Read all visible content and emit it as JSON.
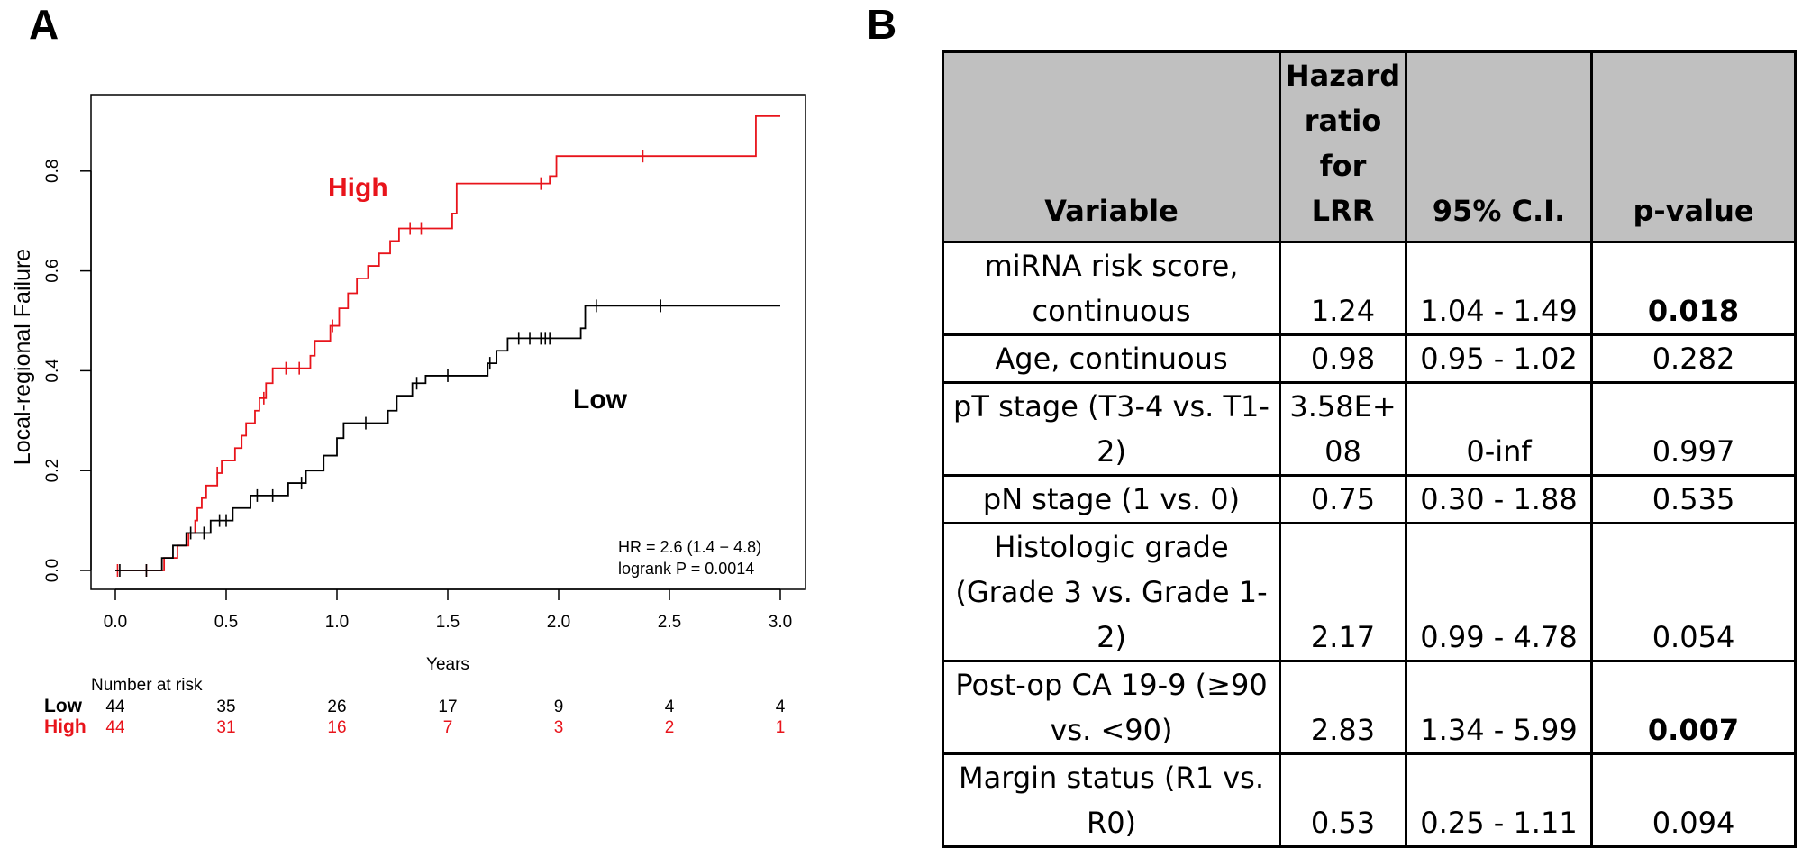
{
  "panels": {
    "a": "A",
    "b": "B"
  },
  "chart_data": {
    "type": "line",
    "title": "",
    "xlabel": "Years",
    "ylabel": "Local-regional Failure",
    "xlim": [
      0,
      3
    ],
    "ylim": [
      0,
      0.9
    ],
    "x_ticks": [
      "0.0",
      "0.5",
      "1.0",
      "1.5",
      "2.0",
      "2.5",
      "3.0"
    ],
    "y_ticks": [
      "0.0",
      "0.2",
      "0.4",
      "0.6",
      "0.8"
    ],
    "x_tick_values": [
      0,
      0.5,
      1.0,
      1.5,
      2.0,
      2.5,
      3.0
    ],
    "y_tick_values": [
      0,
      0.2,
      0.4,
      0.6,
      0.8
    ],
    "series": [
      {
        "name": "High",
        "color": "#e8141b",
        "steps": [
          [
            0,
            0
          ],
          [
            0.2,
            0
          ],
          [
            0.22,
            0.025
          ],
          [
            0.28,
            0.05
          ],
          [
            0.33,
            0.075
          ],
          [
            0.36,
            0.1
          ],
          [
            0.37,
            0.125
          ],
          [
            0.39,
            0.145
          ],
          [
            0.41,
            0.17
          ],
          [
            0.46,
            0.195
          ],
          [
            0.48,
            0.22
          ],
          [
            0.54,
            0.245
          ],
          [
            0.57,
            0.27
          ],
          [
            0.59,
            0.295
          ],
          [
            0.63,
            0.32
          ],
          [
            0.65,
            0.345
          ],
          [
            0.68,
            0.375
          ],
          [
            0.71,
            0.405
          ],
          [
            0.88,
            0.43
          ],
          [
            0.9,
            0.46
          ],
          [
            0.97,
            0.49
          ],
          [
            1.01,
            0.525
          ],
          [
            1.05,
            0.555
          ],
          [
            1.09,
            0.585
          ],
          [
            1.14,
            0.61
          ],
          [
            1.19,
            0.635
          ],
          [
            1.24,
            0.66
          ],
          [
            1.28,
            0.685
          ],
          [
            1.52,
            0.715
          ],
          [
            1.54,
            0.775
          ],
          [
            1.96,
            0.79
          ],
          [
            1.99,
            0.83
          ],
          [
            2.88,
            0.83
          ],
          [
            2.89,
            0.91
          ],
          [
            3.0,
            0.91
          ]
        ],
        "censor": [
          0.01,
          0.14,
          0.46,
          0.67,
          0.77,
          0.83,
          0.98,
          1.33,
          1.38,
          1.92,
          2.38
        ]
      },
      {
        "name": "Low",
        "color": "#000000",
        "steps": [
          [
            0,
            0
          ],
          [
            0.2,
            0
          ],
          [
            0.21,
            0.025
          ],
          [
            0.26,
            0.05
          ],
          [
            0.32,
            0.075
          ],
          [
            0.43,
            0.1
          ],
          [
            0.53,
            0.125
          ],
          [
            0.61,
            0.15
          ],
          [
            0.71,
            0.15
          ],
          [
            0.78,
            0.175
          ],
          [
            0.86,
            0.2
          ],
          [
            0.94,
            0.23
          ],
          [
            1.0,
            0.265
          ],
          [
            1.03,
            0.295
          ],
          [
            1.23,
            0.32
          ],
          [
            1.27,
            0.35
          ],
          [
            1.34,
            0.375
          ],
          [
            1.4,
            0.39
          ],
          [
            1.68,
            0.415
          ],
          [
            1.72,
            0.44
          ],
          [
            1.77,
            0.465
          ],
          [
            2.1,
            0.485
          ],
          [
            2.12,
            0.53
          ],
          [
            3.0,
            0.53
          ]
        ],
        "censor": [
          0.02,
          0.14,
          0.34,
          0.4,
          0.47,
          0.5,
          0.64,
          0.71,
          0.84,
          1.13,
          1.36,
          1.5,
          1.69,
          1.82,
          1.87,
          1.92,
          1.94,
          1.96,
          2.17,
          2.46
        ]
      }
    ],
    "annotations": {
      "high_label": "High",
      "low_label": "Low",
      "hr": "HR = 2.6 (1.4 − 4.8)",
      "logrank": "logrank P = 0.0014"
    },
    "risk_table": {
      "title": "Number at risk",
      "rows": [
        {
          "label": "Low",
          "color": "#000000",
          "values": [
            "44",
            "35",
            "26",
            "17",
            "9",
            "4",
            "4"
          ]
        },
        {
          "label": "High",
          "color": "#e8141b",
          "values": [
            "44",
            "31",
            "16",
            "7",
            "3",
            "2",
            "1"
          ]
        }
      ]
    }
  },
  "table": {
    "headers": {
      "variable": "Variable",
      "hr_line1": "Hazard",
      "hr_line2": "ratio for",
      "hr_line3": "LRR",
      "ci": "95% C.I.",
      "p": "p-value"
    },
    "rows": [
      {
        "variable": "miRNA risk score, continuous",
        "hr": "1.24",
        "ci": "1.04 - 1.49",
        "p": "0.018"
      },
      {
        "variable": "Age, continuous",
        "hr": "0.98",
        "ci": "0.95 - 1.02",
        "p": "0.282"
      },
      {
        "variable": "pT stage (T3-4 vs. T1-2)",
        "hr": "3.58E+08",
        "ci": "0-inf",
        "p": "0.997"
      },
      {
        "variable": "pN stage (1 vs. 0)",
        "hr": "0.75",
        "ci": "0.30 - 1.88",
        "p": "0.535"
      },
      {
        "variable": "Histologic grade (Grade 3 vs. Grade 1-2)",
        "hr": "2.17",
        "ci": "0.99 - 4.78",
        "p": "0.054"
      },
      {
        "variable": "Post-op CA 19-9 (≥90 vs. <90)",
        "hr": "2.83",
        "ci": "1.34 - 5.99",
        "p": "0.007"
      },
      {
        "variable": "Margin status (R1 vs. R0)",
        "hr": "0.53",
        "ci": "0.25 - 1.11",
        "p": "0.094"
      }
    ]
  }
}
